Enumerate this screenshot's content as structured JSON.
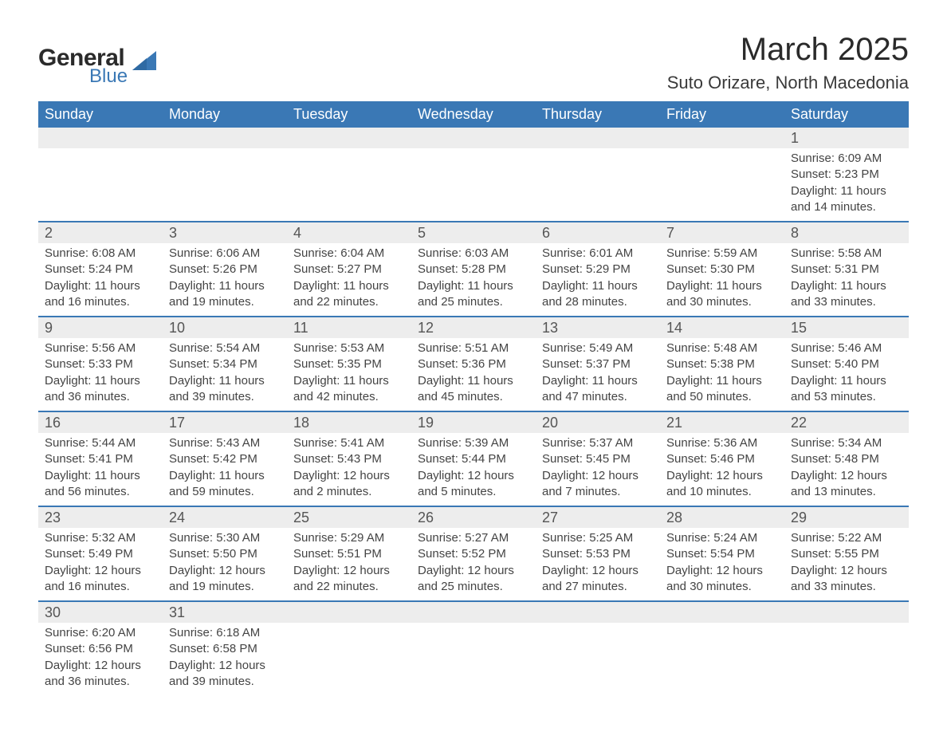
{
  "logo": {
    "general": "General",
    "blue": "Blue"
  },
  "title": "March 2025",
  "location": "Suto Orizare, North Macedonia",
  "colors": {
    "header_bg": "#3a78b5",
    "header_text": "#ffffff",
    "daynum_bg": "#ededed",
    "border": "#3a78b5",
    "body_text": "#444444",
    "page_bg": "#ffffff"
  },
  "day_headers": [
    "Sunday",
    "Monday",
    "Tuesday",
    "Wednesday",
    "Thursday",
    "Friday",
    "Saturday"
  ],
  "weeks": [
    {
      "nums": [
        "",
        "",
        "",
        "",
        "",
        "",
        "1"
      ],
      "cells": [
        null,
        null,
        null,
        null,
        null,
        null,
        {
          "sunrise": "Sunrise: 6:09 AM",
          "sunset": "Sunset: 5:23 PM",
          "day1": "Daylight: 11 hours",
          "day2": "and 14 minutes."
        }
      ]
    },
    {
      "nums": [
        "2",
        "3",
        "4",
        "5",
        "6",
        "7",
        "8"
      ],
      "cells": [
        {
          "sunrise": "Sunrise: 6:08 AM",
          "sunset": "Sunset: 5:24 PM",
          "day1": "Daylight: 11 hours",
          "day2": "and 16 minutes."
        },
        {
          "sunrise": "Sunrise: 6:06 AM",
          "sunset": "Sunset: 5:26 PM",
          "day1": "Daylight: 11 hours",
          "day2": "and 19 minutes."
        },
        {
          "sunrise": "Sunrise: 6:04 AM",
          "sunset": "Sunset: 5:27 PM",
          "day1": "Daylight: 11 hours",
          "day2": "and 22 minutes."
        },
        {
          "sunrise": "Sunrise: 6:03 AM",
          "sunset": "Sunset: 5:28 PM",
          "day1": "Daylight: 11 hours",
          "day2": "and 25 minutes."
        },
        {
          "sunrise": "Sunrise: 6:01 AM",
          "sunset": "Sunset: 5:29 PM",
          "day1": "Daylight: 11 hours",
          "day2": "and 28 minutes."
        },
        {
          "sunrise": "Sunrise: 5:59 AM",
          "sunset": "Sunset: 5:30 PM",
          "day1": "Daylight: 11 hours",
          "day2": "and 30 minutes."
        },
        {
          "sunrise": "Sunrise: 5:58 AM",
          "sunset": "Sunset: 5:31 PM",
          "day1": "Daylight: 11 hours",
          "day2": "and 33 minutes."
        }
      ]
    },
    {
      "nums": [
        "9",
        "10",
        "11",
        "12",
        "13",
        "14",
        "15"
      ],
      "cells": [
        {
          "sunrise": "Sunrise: 5:56 AM",
          "sunset": "Sunset: 5:33 PM",
          "day1": "Daylight: 11 hours",
          "day2": "and 36 minutes."
        },
        {
          "sunrise": "Sunrise: 5:54 AM",
          "sunset": "Sunset: 5:34 PM",
          "day1": "Daylight: 11 hours",
          "day2": "and 39 minutes."
        },
        {
          "sunrise": "Sunrise: 5:53 AM",
          "sunset": "Sunset: 5:35 PM",
          "day1": "Daylight: 11 hours",
          "day2": "and 42 minutes."
        },
        {
          "sunrise": "Sunrise: 5:51 AM",
          "sunset": "Sunset: 5:36 PM",
          "day1": "Daylight: 11 hours",
          "day2": "and 45 minutes."
        },
        {
          "sunrise": "Sunrise: 5:49 AM",
          "sunset": "Sunset: 5:37 PM",
          "day1": "Daylight: 11 hours",
          "day2": "and 47 minutes."
        },
        {
          "sunrise": "Sunrise: 5:48 AM",
          "sunset": "Sunset: 5:38 PM",
          "day1": "Daylight: 11 hours",
          "day2": "and 50 minutes."
        },
        {
          "sunrise": "Sunrise: 5:46 AM",
          "sunset": "Sunset: 5:40 PM",
          "day1": "Daylight: 11 hours",
          "day2": "and 53 minutes."
        }
      ]
    },
    {
      "nums": [
        "16",
        "17",
        "18",
        "19",
        "20",
        "21",
        "22"
      ],
      "cells": [
        {
          "sunrise": "Sunrise: 5:44 AM",
          "sunset": "Sunset: 5:41 PM",
          "day1": "Daylight: 11 hours",
          "day2": "and 56 minutes."
        },
        {
          "sunrise": "Sunrise: 5:43 AM",
          "sunset": "Sunset: 5:42 PM",
          "day1": "Daylight: 11 hours",
          "day2": "and 59 minutes."
        },
        {
          "sunrise": "Sunrise: 5:41 AM",
          "sunset": "Sunset: 5:43 PM",
          "day1": "Daylight: 12 hours",
          "day2": "and 2 minutes."
        },
        {
          "sunrise": "Sunrise: 5:39 AM",
          "sunset": "Sunset: 5:44 PM",
          "day1": "Daylight: 12 hours",
          "day2": "and 5 minutes."
        },
        {
          "sunrise": "Sunrise: 5:37 AM",
          "sunset": "Sunset: 5:45 PM",
          "day1": "Daylight: 12 hours",
          "day2": "and 7 minutes."
        },
        {
          "sunrise": "Sunrise: 5:36 AM",
          "sunset": "Sunset: 5:46 PM",
          "day1": "Daylight: 12 hours",
          "day2": "and 10 minutes."
        },
        {
          "sunrise": "Sunrise: 5:34 AM",
          "sunset": "Sunset: 5:48 PM",
          "day1": "Daylight: 12 hours",
          "day2": "and 13 minutes."
        }
      ]
    },
    {
      "nums": [
        "23",
        "24",
        "25",
        "26",
        "27",
        "28",
        "29"
      ],
      "cells": [
        {
          "sunrise": "Sunrise: 5:32 AM",
          "sunset": "Sunset: 5:49 PM",
          "day1": "Daylight: 12 hours",
          "day2": "and 16 minutes."
        },
        {
          "sunrise": "Sunrise: 5:30 AM",
          "sunset": "Sunset: 5:50 PM",
          "day1": "Daylight: 12 hours",
          "day2": "and 19 minutes."
        },
        {
          "sunrise": "Sunrise: 5:29 AM",
          "sunset": "Sunset: 5:51 PM",
          "day1": "Daylight: 12 hours",
          "day2": "and 22 minutes."
        },
        {
          "sunrise": "Sunrise: 5:27 AM",
          "sunset": "Sunset: 5:52 PM",
          "day1": "Daylight: 12 hours",
          "day2": "and 25 minutes."
        },
        {
          "sunrise": "Sunrise: 5:25 AM",
          "sunset": "Sunset: 5:53 PM",
          "day1": "Daylight: 12 hours",
          "day2": "and 27 minutes."
        },
        {
          "sunrise": "Sunrise: 5:24 AM",
          "sunset": "Sunset: 5:54 PM",
          "day1": "Daylight: 12 hours",
          "day2": "and 30 minutes."
        },
        {
          "sunrise": "Sunrise: 5:22 AM",
          "sunset": "Sunset: 5:55 PM",
          "day1": "Daylight: 12 hours",
          "day2": "and 33 minutes."
        }
      ]
    },
    {
      "nums": [
        "30",
        "31",
        "",
        "",
        "",
        "",
        ""
      ],
      "cells": [
        {
          "sunrise": "Sunrise: 6:20 AM",
          "sunset": "Sunset: 6:56 PM",
          "day1": "Daylight: 12 hours",
          "day2": "and 36 minutes."
        },
        {
          "sunrise": "Sunrise: 6:18 AM",
          "sunset": "Sunset: 6:58 PM",
          "day1": "Daylight: 12 hours",
          "day2": "and 39 minutes."
        },
        null,
        null,
        null,
        null,
        null
      ]
    }
  ]
}
